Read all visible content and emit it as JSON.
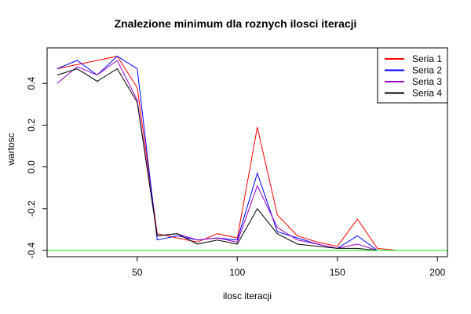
{
  "chart_data": {
    "type": "line",
    "title": "Znalezione minimum dla roznych ilosci iteracji",
    "xlabel": "ilosc iteracji",
    "ylabel": "wartosc",
    "xlim": [
      5,
      205
    ],
    "ylim": [
      -0.43,
      0.57
    ],
    "xticks": [
      50,
      100,
      150,
      200
    ],
    "yticks": [
      -0.4,
      -0.2,
      0.0,
      0.2,
      0.4
    ],
    "xtick_labels": [
      "50",
      "100",
      "150",
      "200"
    ],
    "ytick_labels": [
      "-0.4",
      "-0.2",
      "0.0",
      "0.2",
      "0.4"
    ],
    "x": [
      10,
      20,
      30,
      40,
      50,
      60,
      70,
      80,
      90,
      100,
      110,
      120,
      130,
      140,
      150,
      160,
      170,
      180,
      190,
      200
    ],
    "series": [
      {
        "name": "Seria 1",
        "color": "#ff0000",
        "values": [
          0.47,
          0.49,
          0.51,
          0.53,
          0.38,
          -0.32,
          -0.34,
          -0.36,
          -0.32,
          -0.34,
          0.19,
          -0.23,
          -0.33,
          -0.36,
          -0.38,
          -0.25,
          -0.39,
          -0.4,
          -0.4,
          -0.4
        ]
      },
      {
        "name": "Seria 2",
        "color": "#0000ff",
        "values": [
          0.47,
          0.51,
          0.44,
          0.53,
          0.47,
          -0.35,
          -0.33,
          -0.35,
          -0.34,
          -0.35,
          -0.03,
          -0.31,
          -0.34,
          -0.37,
          -0.39,
          -0.33,
          -0.4,
          -0.4,
          -0.4,
          -0.4
        ]
      },
      {
        "name": "Seria 3",
        "color": "#9900cc",
        "values": [
          0.4,
          0.48,
          0.44,
          0.51,
          0.32,
          -0.33,
          -0.32,
          -0.35,
          -0.34,
          -0.36,
          -0.09,
          -0.29,
          -0.35,
          -0.37,
          -0.39,
          -0.37,
          -0.4,
          -0.4,
          -0.4,
          -0.4
        ]
      },
      {
        "name": "Seria 4",
        "color": "#000000",
        "values": [
          0.44,
          0.47,
          0.41,
          0.47,
          0.31,
          -0.33,
          -0.32,
          -0.37,
          -0.35,
          -0.37,
          -0.2,
          -0.32,
          -0.37,
          -0.38,
          -0.39,
          -0.39,
          -0.4,
          -0.4,
          -0.4,
          -0.4
        ]
      }
    ],
    "reference_line": {
      "y": -0.4,
      "color": "#00ee00"
    },
    "legend_position": "top-right"
  }
}
